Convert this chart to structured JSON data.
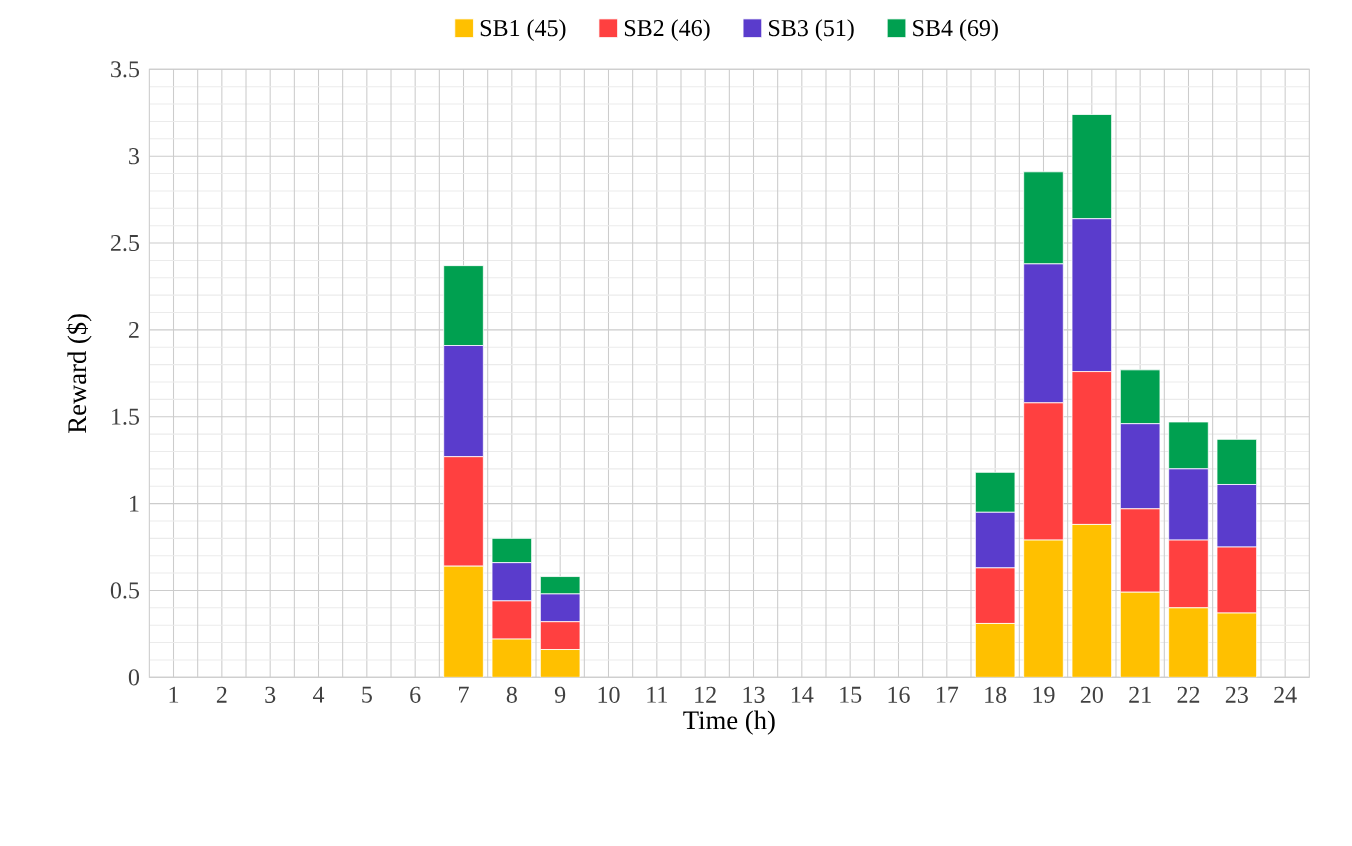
{
  "chart_data": {
    "type": "bar",
    "stacked": true,
    "xlabel": "Time (h)",
    "ylabel": "Reward ($)",
    "categories": [
      "1",
      "2",
      "3",
      "4",
      "5",
      "6",
      "7",
      "8",
      "9",
      "10",
      "11",
      "12",
      "13",
      "14",
      "15",
      "16",
      "17",
      "18",
      "19",
      "20",
      "21",
      "22",
      "23",
      "24"
    ],
    "series": [
      {
        "name": "SB1 (45)",
        "color": "#ffc000",
        "values": [
          0,
          0,
          0,
          0,
          0,
          0,
          0.64,
          0.22,
          0.16,
          0,
          0,
          0,
          0,
          0,
          0,
          0,
          0,
          0.31,
          0.79,
          0.88,
          0.49,
          0.4,
          0.37,
          0
        ]
      },
      {
        "name": "SB2 (46)",
        "color": "#ff4040",
        "values": [
          0,
          0,
          0,
          0,
          0,
          0,
          0.63,
          0.22,
          0.16,
          0,
          0,
          0,
          0,
          0,
          0,
          0,
          0,
          0.32,
          0.79,
          0.88,
          0.48,
          0.39,
          0.38,
          0
        ]
      },
      {
        "name": "SB3 (51)",
        "color": "#5a3ccc",
        "values": [
          0,
          0,
          0,
          0,
          0,
          0,
          0.64,
          0.22,
          0.16,
          0,
          0,
          0,
          0,
          0,
          0,
          0,
          0,
          0.32,
          0.8,
          0.88,
          0.49,
          0.41,
          0.36,
          0
        ]
      },
      {
        "name": "SB4 (69)",
        "color": "#00a050",
        "values": [
          0,
          0,
          0,
          0,
          0,
          0,
          0.46,
          0.14,
          0.1,
          0,
          0,
          0,
          0,
          0,
          0,
          0,
          0,
          0.23,
          0.53,
          0.6,
          0.31,
          0.27,
          0.26,
          0
        ]
      }
    ],
    "ylim": [
      0,
      3.5
    ],
    "yticks": [
      0,
      0.5,
      1,
      1.5,
      2,
      2.5,
      3,
      3.5
    ],
    "grid": true,
    "legend": "top"
  }
}
